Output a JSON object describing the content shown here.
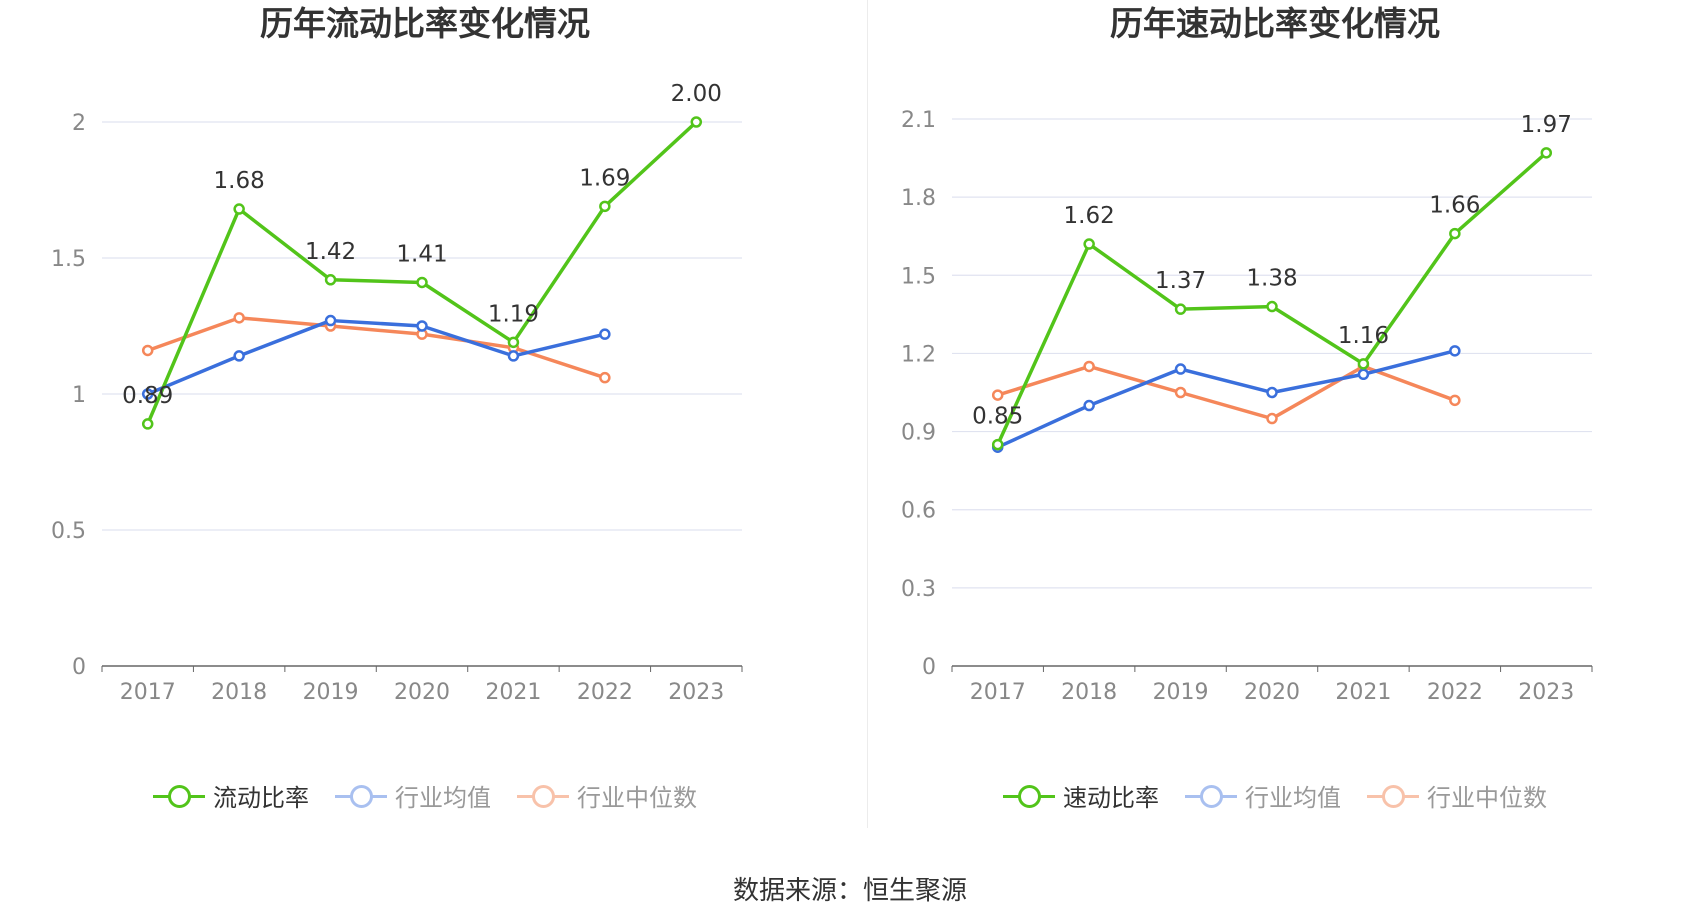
{
  "source_text": "数据来源：恒生聚源",
  "colors": {
    "green": "#52c41a",
    "blue": "#3a6fdc",
    "orange": "#f5875a",
    "grid": "#e0e3f0",
    "axis": "#666666",
    "tick_text": "#888888"
  },
  "chart_data": [
    {
      "type": "line",
      "title": "历年流动比率变化情况",
      "categories": [
        "2017",
        "2018",
        "2019",
        "2020",
        "2021",
        "2022",
        "2023"
      ],
      "ylim": [
        0,
        2
      ],
      "yticks": [
        "0",
        "0.5",
        "1",
        "1.5",
        "2"
      ],
      "ytick_values": [
        0,
        0.5,
        1,
        1.5,
        2
      ],
      "grid": true,
      "legend_position": "bottom",
      "series": [
        {
          "name": "流动比率",
          "color": "#52c41a",
          "values": [
            0.89,
            1.68,
            1.42,
            1.41,
            1.19,
            1.69,
            2.0
          ],
          "labels": [
            "0.89",
            "1.68",
            "1.42",
            "1.41",
            "1.19",
            "1.69",
            "2.00"
          ]
        },
        {
          "name": "行业均值",
          "color": "#3a6fdc",
          "values": [
            1.0,
            1.14,
            1.27,
            1.25,
            1.14,
            1.22,
            null
          ]
        },
        {
          "name": "行业中位数",
          "color": "#f5875a",
          "values": [
            1.16,
            1.28,
            1.25,
            1.22,
            1.17,
            1.06,
            null
          ]
        }
      ]
    },
    {
      "type": "line",
      "title": "历年速动比率变化情况",
      "categories": [
        "2017",
        "2018",
        "2019",
        "2020",
        "2021",
        "2022",
        "2023"
      ],
      "ylim": [
        0,
        2.1
      ],
      "yticks": [
        "0",
        "0.3",
        "0.6",
        "0.9",
        "1.2",
        "1.5",
        "1.8",
        "2.1"
      ],
      "ytick_values": [
        0,
        0.3,
        0.6,
        0.9,
        1.2,
        1.5,
        1.8,
        2.1
      ],
      "grid": true,
      "legend_position": "bottom",
      "series": [
        {
          "name": "速动比率",
          "color": "#52c41a",
          "values": [
            0.85,
            1.62,
            1.37,
            1.38,
            1.16,
            1.66,
            1.97
          ],
          "labels": [
            "0.85",
            "1.62",
            "1.37",
            "1.38",
            "1.16",
            "1.66",
            "1.97"
          ]
        },
        {
          "name": "行业均值",
          "color": "#3a6fdc",
          "values": [
            0.84,
            1.0,
            1.14,
            1.05,
            1.12,
            1.21,
            null
          ]
        },
        {
          "name": "行业中位数",
          "color": "#f5875a",
          "values": [
            1.04,
            1.15,
            1.05,
            0.95,
            1.15,
            1.02,
            null
          ]
        }
      ]
    }
  ]
}
